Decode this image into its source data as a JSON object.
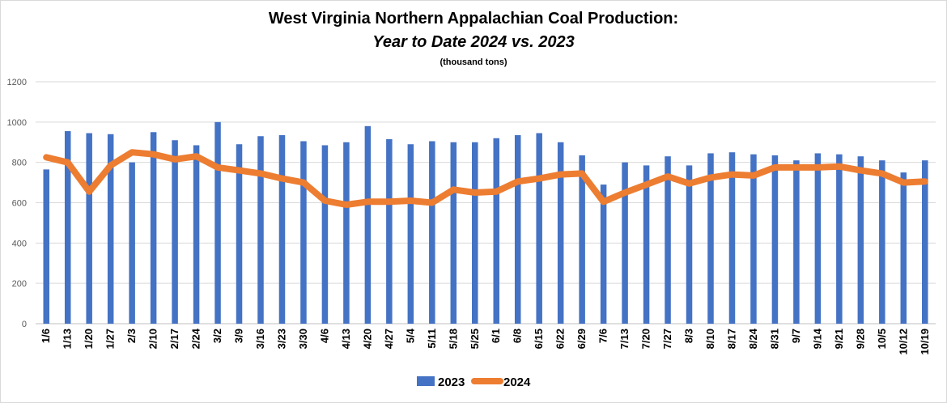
{
  "chart_data": {
    "type": "bar+line",
    "title": "West Virginia Northern Appalachian Coal Production:",
    "subtitle": "Year to Date 2024 vs. 2023",
    "unit": "(thousand tons)",
    "xlabel": "",
    "ylabel": "",
    "ylim": [
      0,
      1200
    ],
    "yticks": [
      0,
      200,
      400,
      600,
      800,
      1000,
      1200
    ],
    "grid": true,
    "legend_position": "bottom",
    "categories": [
      "1/6",
      "1/13",
      "1/20",
      "1/27",
      "2/3",
      "2/10",
      "2/17",
      "2/24",
      "3/2",
      "3/9",
      "3/16",
      "3/23",
      "3/30",
      "4/6",
      "4/13",
      "4/20",
      "4/27",
      "5/4",
      "5/11",
      "5/18",
      "5/25",
      "6/1",
      "6/8",
      "6/15",
      "6/22",
      "6/29",
      "7/6",
      "7/13",
      "7/20",
      "7/27",
      "8/3",
      "8/10",
      "8/17",
      "8/24",
      "8/31",
      "9/7",
      "9/14",
      "9/21",
      "9/28",
      "10/5",
      "10/12",
      "10/19"
    ],
    "series": [
      {
        "name": "2023",
        "type": "bar",
        "color": "#4472C4",
        "values": [
          765,
          955,
          945,
          940,
          800,
          950,
          910,
          885,
          1000,
          890,
          930,
          935,
          905,
          885,
          900,
          980,
          915,
          890,
          905,
          900,
          900,
          920,
          935,
          945,
          900,
          835,
          690,
          800,
          785,
          830,
          785,
          845,
          850,
          840,
          835,
          810,
          845,
          840,
          830,
          810,
          750,
          810
        ]
      },
      {
        "name": "2024",
        "type": "line",
        "color": "#ED7D31",
        "values": [
          825,
          800,
          655,
          785,
          850,
          840,
          815,
          830,
          775,
          760,
          745,
          720,
          700,
          610,
          590,
          605,
          605,
          610,
          600,
          665,
          650,
          655,
          705,
          720,
          740,
          745,
          605,
          650,
          690,
          730,
          695,
          725,
          740,
          735,
          775,
          775,
          775,
          780,
          760,
          745,
          700,
          705
        ]
      }
    ]
  }
}
